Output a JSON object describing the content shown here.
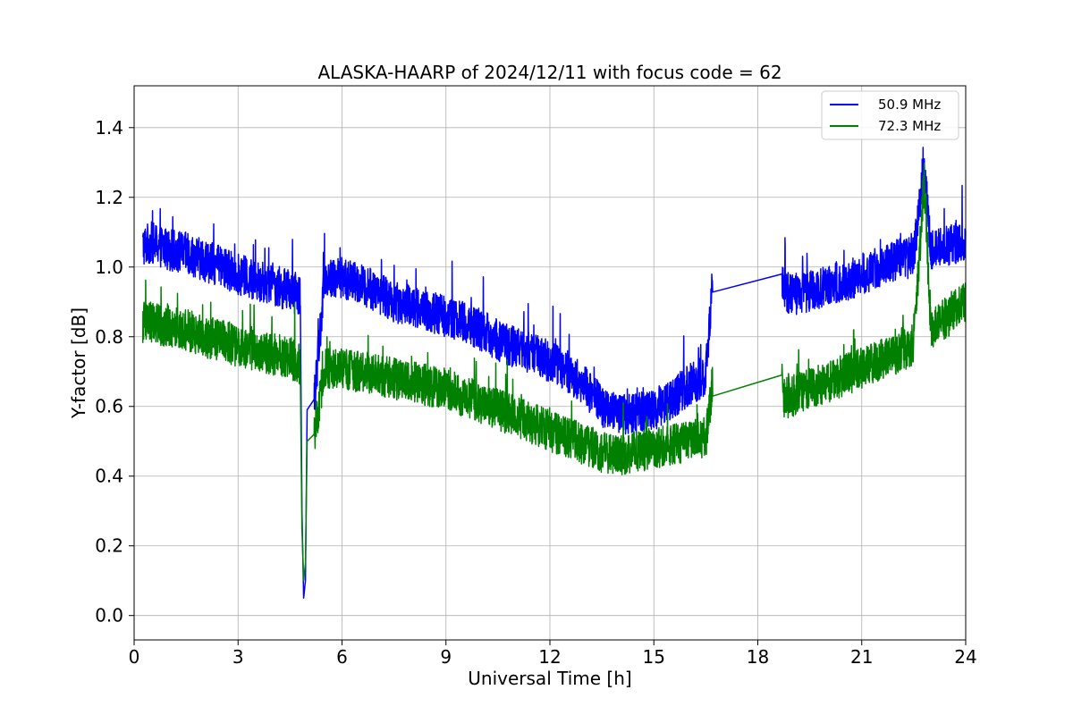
{
  "chart_data": {
    "type": "line",
    "title": "ALASKA-HAARP of 2024/12/11 with focus code = 62",
    "xlabel": "Universal Time [h]",
    "ylabel": "Y-factor [dB]",
    "xlim": [
      0,
      24
    ],
    "ylim": [
      -0.07,
      1.52
    ],
    "xticks": [
      0,
      3,
      6,
      9,
      12,
      15,
      18,
      21,
      24
    ],
    "yticks": [
      0.0,
      0.2,
      0.4,
      0.6,
      0.8,
      1.0,
      1.2,
      1.4
    ],
    "ytick_labels": [
      "0.0",
      "0.2",
      "0.4",
      "0.6",
      "0.8",
      "1.0",
      "1.2",
      "1.4"
    ],
    "grid": true,
    "legend_position": "top-right",
    "series": [
      {
        "name": "50.9 MHz",
        "color": "#0000ff",
        "x": [
          0.25,
          0.5,
          1,
          1.5,
          2,
          2.5,
          3,
          3.5,
          4,
          4.5,
          4.8,
          4.85,
          4.9,
          4.95,
          5.0,
          5.2,
          5.5,
          6,
          6.5,
          7,
          7.5,
          8,
          8.5,
          9,
          9.5,
          10,
          10.5,
          11,
          11.5,
          12,
          12.5,
          13,
          13.5,
          14,
          14.5,
          15,
          15.5,
          16,
          16.5,
          16.7,
          18.7,
          18.75,
          19,
          19.5,
          20,
          20.5,
          21,
          21.5,
          22,
          22.5,
          22.8,
          23,
          23.5,
          24
        ],
        "values": [
          1.06,
          1.07,
          1.05,
          1.04,
          1.02,
          1.0,
          0.98,
          0.96,
          0.95,
          0.93,
          0.92,
          0.3,
          0.05,
          0.1,
          0.59,
          0.62,
          0.97,
          0.97,
          0.95,
          0.93,
          0.9,
          0.89,
          0.87,
          0.86,
          0.84,
          0.82,
          0.79,
          0.77,
          0.75,
          0.73,
          0.7,
          0.66,
          0.6,
          0.58,
          0.58,
          0.59,
          0.62,
          0.66,
          0.69,
          0.97,
          0.98,
          0.93,
          0.92,
          0.93,
          0.95,
          0.96,
          0.98,
          1.0,
          1.02,
          1.03,
          1.3,
          1.05,
          1.06,
          1.08
        ],
        "noise": 0.06
      },
      {
        "name": "72.3 MHz",
        "color": "#008000",
        "x": [
          0.25,
          0.5,
          1,
          1.5,
          2,
          2.5,
          3,
          3.5,
          4,
          4.5,
          4.8,
          4.85,
          4.9,
          4.95,
          5.0,
          5.2,
          5.5,
          6,
          6.5,
          7,
          7.5,
          8,
          8.5,
          9,
          9.5,
          10,
          10.5,
          11,
          11.5,
          12,
          12.5,
          13,
          13.5,
          14,
          14.5,
          15,
          15.5,
          16,
          16.5,
          16.7,
          18.7,
          18.75,
          19,
          19.5,
          20,
          20.5,
          21,
          21.5,
          22,
          22.5,
          22.8,
          23,
          23.5,
          24
        ],
        "values": [
          0.84,
          0.84,
          0.83,
          0.82,
          0.8,
          0.79,
          0.77,
          0.76,
          0.75,
          0.74,
          0.72,
          0.25,
          0.1,
          0.15,
          0.5,
          0.52,
          0.71,
          0.71,
          0.7,
          0.69,
          0.68,
          0.67,
          0.66,
          0.65,
          0.63,
          0.61,
          0.59,
          0.57,
          0.55,
          0.53,
          0.51,
          0.49,
          0.47,
          0.46,
          0.47,
          0.48,
          0.49,
          0.5,
          0.51,
          0.67,
          0.69,
          0.62,
          0.63,
          0.65,
          0.67,
          0.69,
          0.71,
          0.73,
          0.75,
          0.78,
          1.25,
          0.82,
          0.86,
          0.9
        ],
        "noise": 0.06
      }
    ]
  }
}
